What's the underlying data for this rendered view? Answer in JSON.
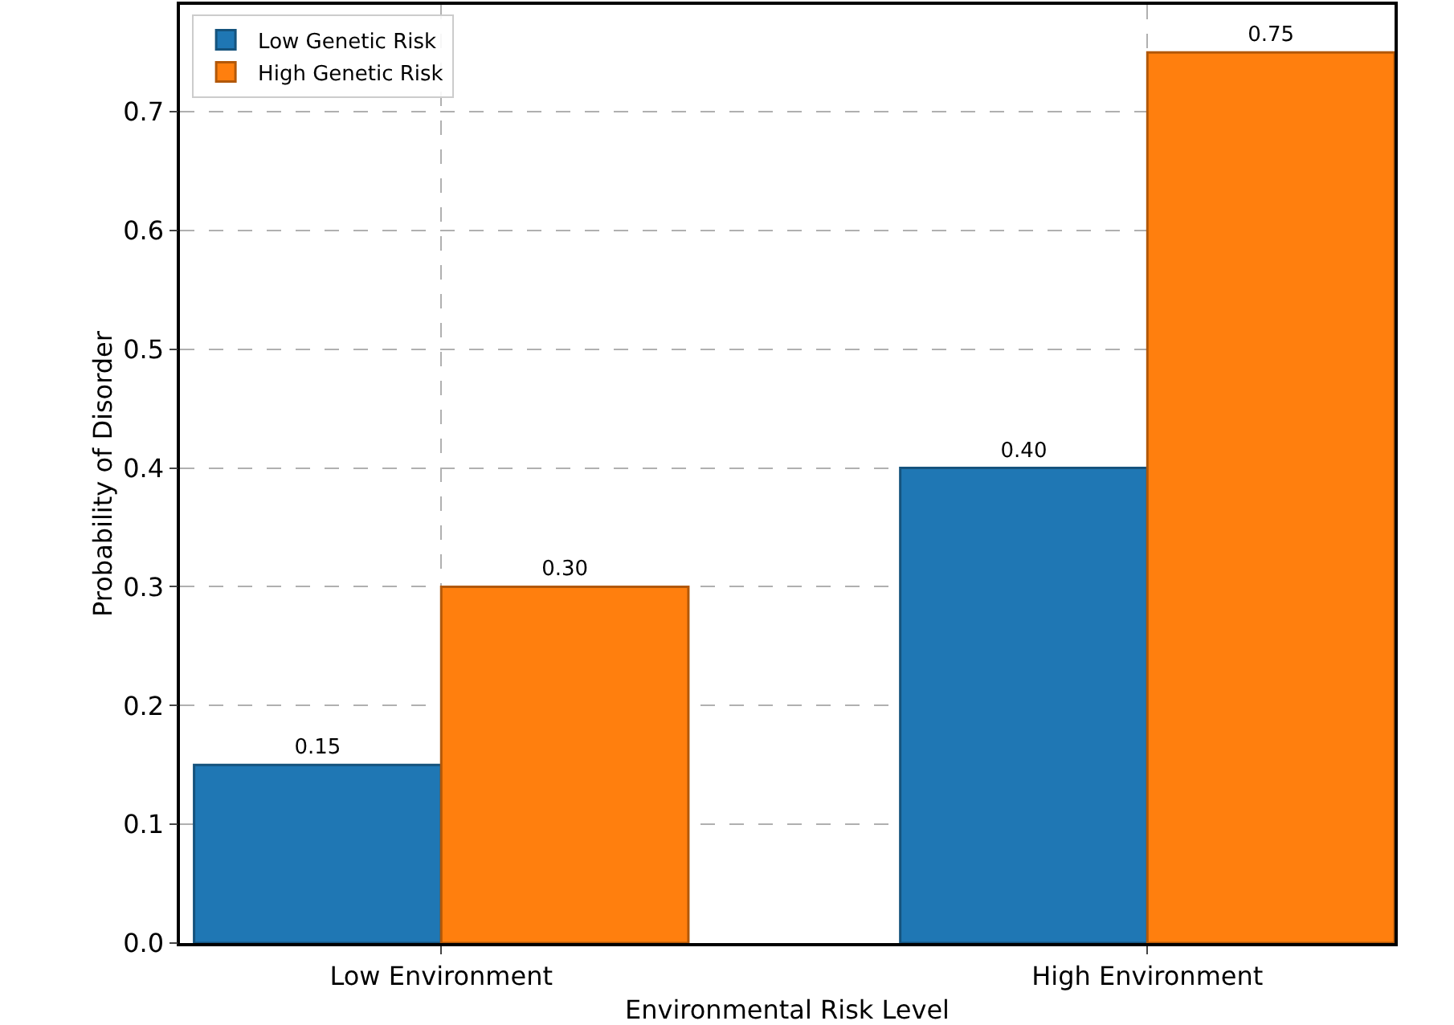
{
  "chart_data": {
    "type": "bar",
    "xlabel": "Environmental Risk Level",
    "ylabel": "Probability of Disorder",
    "categories": [
      "Low Environment",
      "High Environment"
    ],
    "series": [
      {
        "name": "Low Genetic Risk",
        "color": "#1f77b4",
        "values": [
          0.15,
          0.4
        ]
      },
      {
        "name": "High Genetic Risk",
        "color": "#ff7f0e",
        "values": [
          0.3,
          0.75
        ]
      }
    ],
    "ylim": [
      0,
      0.79
    ],
    "yticks": [
      {
        "value": 0,
        "label": "0.0"
      },
      0.1,
      0.2,
      0.3,
      0.4,
      0.5,
      0.6,
      0.7
    ],
    "value_labels": [
      [
        "0.15",
        "0.40"
      ],
      [
        "0.30",
        "0.75"
      ]
    ],
    "grid": true,
    "legend": "top left"
  }
}
